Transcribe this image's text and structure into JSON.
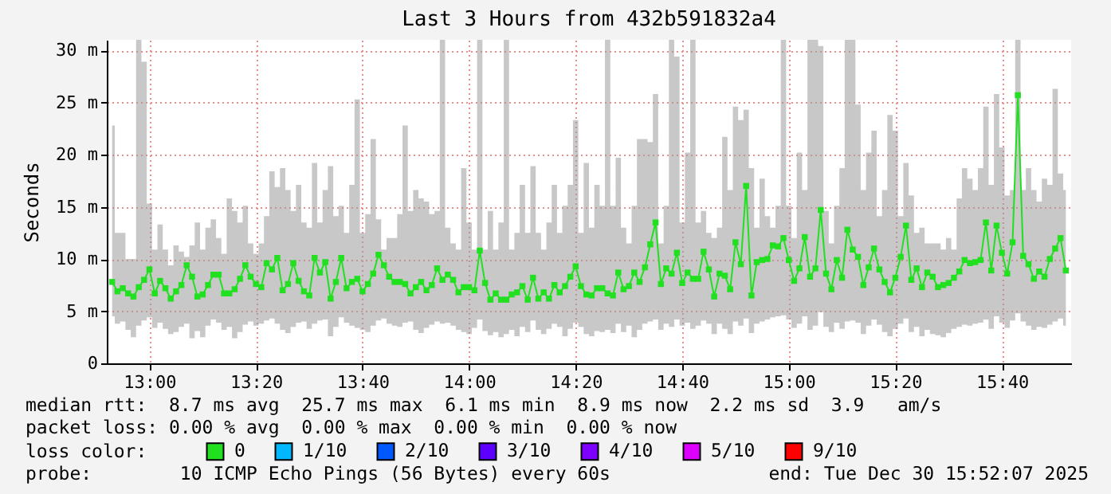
{
  "chart_data": {
    "type": "line",
    "title": "Last 3 Hours from 432b591832a4",
    "ylabel": "Seconds",
    "legend_title": "loss color:",
    "legend": "bottom",
    "grid": true,
    "marker": "square",
    "xlim": [
      "2025-12-30T12:52",
      "2025-12-30T15:53"
    ],
    "xticks": [
      {
        "value": "2025-12-30T13:00",
        "label": "13:00"
      },
      {
        "value": "2025-12-30T13:20",
        "label": "13:20"
      },
      {
        "value": "2025-12-30T13:40",
        "label": "13:40"
      },
      {
        "value": "2025-12-30T14:00",
        "label": "14:00"
      },
      {
        "value": "2025-12-30T14:20",
        "label": "14:20"
      },
      {
        "value": "2025-12-30T14:40",
        "label": "14:40"
      },
      {
        "value": "2025-12-30T15:00",
        "label": "15:00"
      },
      {
        "value": "2025-12-30T15:20",
        "label": "15:20"
      },
      {
        "value": "2025-12-30T15:40",
        "label": "15:40"
      }
    ],
    "ylim": [
      0,
      31
    ],
    "yticks": [
      0,
      {
        "value": 5,
        "label": "5 m"
      },
      {
        "value": 10,
        "label": "10 m"
      },
      {
        "value": 15,
        "label": "15 m"
      },
      {
        "value": 20,
        "label": "20 m"
      },
      {
        "value": 25,
        "label": "25 m"
      },
      {
        "value": 30,
        "label": "30 m"
      }
    ],
    "x": [
      "2025-12-30T12:53",
      "2025-12-30T12:54",
      "2025-12-30T12:55",
      "2025-12-30T12:56",
      "2025-12-30T12:57",
      "2025-12-30T12:58",
      "2025-12-30T12:59",
      "2025-12-30T13:00",
      "2025-12-30T13:01",
      "2025-12-30T13:02",
      "2025-12-30T13:03",
      "2025-12-30T13:04",
      "2025-12-30T13:05",
      "2025-12-30T13:06",
      "2025-12-30T13:07",
      "2025-12-30T13:08",
      "2025-12-30T13:09",
      "2025-12-30T13:10",
      "2025-12-30T13:11",
      "2025-12-30T13:12",
      "2025-12-30T13:13",
      "2025-12-30T13:14",
      "2025-12-30T13:15",
      "2025-12-30T13:16",
      "2025-12-30T13:17",
      "2025-12-30T13:18",
      "2025-12-30T13:19",
      "2025-12-30T13:20",
      "2025-12-30T13:21",
      "2025-12-30T13:22",
      "2025-12-30T13:23",
      "2025-12-30T13:24",
      "2025-12-30T13:25",
      "2025-12-30T13:26",
      "2025-12-30T13:27",
      "2025-12-30T13:28",
      "2025-12-30T13:29",
      "2025-12-30T13:30",
      "2025-12-30T13:31",
      "2025-12-30T13:32",
      "2025-12-30T13:33",
      "2025-12-30T13:34",
      "2025-12-30T13:35",
      "2025-12-30T13:36",
      "2025-12-30T13:37",
      "2025-12-30T13:38",
      "2025-12-30T13:39",
      "2025-12-30T13:40",
      "2025-12-30T13:41",
      "2025-12-30T13:42",
      "2025-12-30T13:43",
      "2025-12-30T13:44",
      "2025-12-30T13:45",
      "2025-12-30T13:46",
      "2025-12-30T13:47",
      "2025-12-30T13:48",
      "2025-12-30T13:49",
      "2025-12-30T13:50",
      "2025-12-30T13:51",
      "2025-12-30T13:52",
      "2025-12-30T13:53",
      "2025-12-30T13:54",
      "2025-12-30T13:55",
      "2025-12-30T13:56",
      "2025-12-30T13:57",
      "2025-12-30T13:58",
      "2025-12-30T13:59",
      "2025-12-30T14:00",
      "2025-12-30T14:01",
      "2025-12-30T14:02",
      "2025-12-30T14:03",
      "2025-12-30T14:04",
      "2025-12-30T14:05",
      "2025-12-30T14:06",
      "2025-12-30T14:07",
      "2025-12-30T14:08",
      "2025-12-30T14:09",
      "2025-12-30T14:10",
      "2025-12-30T14:11",
      "2025-12-30T14:12",
      "2025-12-30T14:13",
      "2025-12-30T14:14",
      "2025-12-30T14:15",
      "2025-12-30T14:16",
      "2025-12-30T14:17",
      "2025-12-30T14:18",
      "2025-12-30T14:19",
      "2025-12-30T14:20",
      "2025-12-30T14:21",
      "2025-12-30T14:22",
      "2025-12-30T14:23",
      "2025-12-30T14:24",
      "2025-12-30T14:25",
      "2025-12-30T14:26",
      "2025-12-30T14:27",
      "2025-12-30T14:28",
      "2025-12-30T14:29",
      "2025-12-30T14:30",
      "2025-12-30T14:31",
      "2025-12-30T14:32",
      "2025-12-30T14:33",
      "2025-12-30T14:34",
      "2025-12-30T14:35",
      "2025-12-30T14:36",
      "2025-12-30T14:37",
      "2025-12-30T14:38",
      "2025-12-30T14:39",
      "2025-12-30T14:40",
      "2025-12-30T14:41",
      "2025-12-30T14:42",
      "2025-12-30T14:43",
      "2025-12-30T14:44",
      "2025-12-30T14:45",
      "2025-12-30T14:46",
      "2025-12-30T14:47",
      "2025-12-30T14:48",
      "2025-12-30T14:49",
      "2025-12-30T14:50",
      "2025-12-30T14:51",
      "2025-12-30T14:52",
      "2025-12-30T14:53",
      "2025-12-30T14:54",
      "2025-12-30T14:55",
      "2025-12-30T14:56",
      "2025-12-30T14:57",
      "2025-12-30T14:58",
      "2025-12-30T14:59",
      "2025-12-30T15:00",
      "2025-12-30T15:01",
      "2025-12-30T15:02",
      "2025-12-30T15:03",
      "2025-12-30T15:04",
      "2025-12-30T15:05",
      "2025-12-30T15:06",
      "2025-12-30T15:07",
      "2025-12-30T15:08",
      "2025-12-30T15:09",
      "2025-12-30T15:10",
      "2025-12-30T15:11",
      "2025-12-30T15:12",
      "2025-12-30T15:13",
      "2025-12-30T15:14",
      "2025-12-30T15:15",
      "2025-12-30T15:16",
      "2025-12-30T15:17",
      "2025-12-30T15:18",
      "2025-12-30T15:19",
      "2025-12-30T15:20",
      "2025-12-30T15:21",
      "2025-12-30T15:22",
      "2025-12-30T15:23",
      "2025-12-30T15:24",
      "2025-12-30T15:25",
      "2025-12-30T15:26",
      "2025-12-30T15:27",
      "2025-12-30T15:28",
      "2025-12-30T15:29",
      "2025-12-30T15:30",
      "2025-12-30T15:31",
      "2025-12-30T15:32",
      "2025-12-30T15:33",
      "2025-12-30T15:34",
      "2025-12-30T15:35",
      "2025-12-30T15:36",
      "2025-12-30T15:37",
      "2025-12-30T15:38",
      "2025-12-30T15:39",
      "2025-12-30T15:40",
      "2025-12-30T15:41",
      "2025-12-30T15:42",
      "2025-12-30T15:43",
      "2025-12-30T15:44",
      "2025-12-30T15:45",
      "2025-12-30T15:46",
      "2025-12-30T15:47",
      "2025-12-30T15:48",
      "2025-12-30T15:49",
      "2025-12-30T15:50",
      "2025-12-30T15:51",
      "2025-12-30T15:52"
    ],
    "series": [
      {
        "name": "0",
        "color": "#20e020",
        "values": [
          7.8,
          6.9,
          7.2,
          6.7,
          6.4,
          7.3,
          8.0,
          9.0,
          6.7,
          7.9,
          7.2,
          6.2,
          6.9,
          7.5,
          9.4,
          8.3,
          6.4,
          6.6,
          7.5,
          8.5,
          8.5,
          6.7,
          6.7,
          7.1,
          8.1,
          9.4,
          8.3,
          7.6,
          7.3,
          9.6,
          9.0,
          10.1,
          7.0,
          7.6,
          9.6,
          7.9,
          6.9,
          6.5,
          10.1,
          8.7,
          9.7,
          6.2,
          7.8,
          10.1,
          7.2,
          7.8,
          8.1,
          6.9,
          7.6,
          8.6,
          10.4,
          9.4,
          8.3,
          7.8,
          7.8,
          7.6,
          6.7,
          7.3,
          7.8,
          7.0,
          7.5,
          9.1,
          8.0,
          8.5,
          8.0,
          6.8,
          7.3,
          7.3,
          7.0,
          10.8,
          7.7,
          6.1,
          6.7,
          6.1,
          6.1,
          6.6,
          6.8,
          7.4,
          6.1,
          8.2,
          6.2,
          6.8,
          6.2,
          7.5,
          6.8,
          7.4,
          8.3,
          9.3,
          7.4,
          6.6,
          6.5,
          7.2,
          7.2,
          6.7,
          6.5,
          8.7,
          7.1,
          7.4,
          8.7,
          7.8,
          9.2,
          11.4,
          13.5,
          7.6,
          9.1,
          8.6,
          10.6,
          7.7,
          8.7,
          8.1,
          8.1,
          10.7,
          9.0,
          6.4,
          8.6,
          8.4,
          7.1,
          11.6,
          9.5,
          17.0,
          6.5,
          9.7,
          9.9,
          10.0,
          11.3,
          11.2,
          12.0,
          9.9,
          7.9,
          9.1,
          12.1,
          8.3,
          9.1,
          14.7,
          8.6,
          7.1,
          9.9,
          8.2,
          12.8,
          10.9,
          10.2,
          7.5,
          9.2,
          11.0,
          9.0,
          7.8,
          6.8,
          8.2,
          10.2,
          13.2,
          8.0,
          9.1,
          7.3,
          8.7,
          8.3,
          7.3,
          7.5,
          7.7,
          8.2,
          8.8,
          9.9,
          9.6,
          9.7,
          9.9,
          13.5,
          8.9,
          13.2,
          10.6,
          8.6,
          11.6,
          25.7,
          10.3,
          9.5,
          8.1,
          8.8,
          8.3,
          10.0,
          11.0,
          12.0,
          8.9
        ],
        "lower": [
          4.5,
          3.8,
          4.0,
          3.2,
          2.5,
          3.6,
          4.1,
          4.4,
          3.4,
          3.9,
          3.3,
          2.8,
          3.0,
          3.5,
          3.8,
          2.4,
          3.1,
          2.5,
          3.6,
          4.2,
          3.9,
          3.2,
          3.5,
          2.4,
          3.0,
          3.7,
          4.0,
          3.6,
          3.8,
          4.1,
          4.3,
          3.8,
          3.2,
          2.9,
          3.5,
          3.9,
          4.0,
          3.3,
          3.8,
          4.1,
          4.2,
          2.6,
          3.5,
          4.4,
          3.9,
          3.6,
          3.4,
          3.2,
          3.0,
          3.6,
          4.1,
          4.3,
          3.8,
          3.6,
          3.5,
          3.9,
          4.0,
          3.2,
          2.9,
          3.4,
          3.7,
          4.0,
          3.8,
          3.9,
          3.6,
          3.2,
          3.0,
          2.8,
          3.4,
          4.2,
          3.1,
          2.7,
          3.0,
          2.5,
          2.8,
          3.2,
          2.6,
          3.5,
          3.0,
          4.1,
          3.2,
          2.8,
          3.3,
          3.8,
          3.5,
          2.6,
          3.3,
          3.9,
          3.5,
          2.8,
          2.6,
          3.1,
          3.0,
          3.2,
          2.9,
          3.8,
          3.0,
          3.6,
          2.5,
          3.2,
          3.8,
          4.0,
          4.2,
          3.2,
          3.8,
          3.5,
          4.2,
          3.6,
          3.9,
          3.3,
          3.6,
          4.1,
          3.8,
          2.8,
          3.8,
          3.3,
          2.8,
          4.0,
          3.6,
          4.3,
          2.9,
          3.8,
          4.0,
          4.2,
          4.4,
          4.5,
          4.6,
          4.2,
          3.4,
          3.8,
          4.5,
          3.2,
          3.6,
          4.9,
          3.5,
          3.0,
          3.9,
          3.3,
          4.0,
          4.1,
          3.9,
          2.8,
          3.6,
          4.2,
          3.7,
          3.0,
          2.6,
          3.3,
          3.8,
          4.3,
          3.0,
          3.5,
          2.6,
          3.2,
          2.8,
          2.7,
          2.5,
          2.9,
          3.3,
          3.5,
          3.7,
          3.6,
          3.8,
          3.9,
          4.2,
          3.3,
          4.5,
          3.9,
          3.4,
          4.1,
          4.8,
          4.0,
          3.6,
          3.2,
          3.5,
          3.4,
          3.7,
          4.0,
          4.3,
          3.6
        ],
        "upper": [
          22.8,
          12.5,
          12.5,
          10,
          10,
          31,
          28.9,
          15.3,
          10.9,
          13.3,
          10.9,
          9.4,
          11.3,
          10.7,
          10.2,
          11.3,
          13.5,
          10.9,
          13.0,
          13.8,
          12.0,
          10.5,
          15.8,
          14.6,
          13.5,
          15.1,
          11.5,
          10.5,
          11.5,
          14.1,
          18.4,
          16.9,
          18.7,
          16.6,
          14.6,
          17.1,
          13.5,
          13.0,
          19.2,
          13.5,
          16.6,
          18.9,
          14.1,
          15.1,
          12.5,
          17.1,
          25.3,
          12.5,
          14.3,
          21.5,
          13.8,
          10.9,
          12.0,
          12.0,
          14.3,
          22.8,
          14.6,
          16.6,
          15.8,
          15.5,
          14.3,
          14.6,
          31,
          13.0,
          11.5,
          10.9,
          18.7,
          13.5,
          10.9,
          31,
          10.9,
          14.6,
          10.9,
          13.5,
          31,
          10.9,
          12.5,
          17.1,
          12.5,
          18.9,
          12.5,
          10.9,
          13.5,
          17.1,
          12.5,
          15.1,
          17.1,
          23.3,
          12.5,
          19.2,
          13.0,
          17.1,
          15.1,
          31,
          15.1,
          19.7,
          13.0,
          11.5,
          15.1,
          21.5,
          21.5,
          21.2,
          25.8,
          11.5,
          15.1,
          31,
          29.4,
          13.5,
          20.2,
          31,
          13.5,
          14.6,
          12.5,
          12.0,
          13.0,
          21.7,
          16.6,
          24.6,
          23.3,
          24.3,
          18.7,
          13.0,
          17.7,
          14.1,
          13.0,
          15.1,
          31,
          15.1,
          12.0,
          20.2,
          16.6,
          31,
          31,
          30.4,
          14.6,
          11.5,
          15.1,
          18.7,
          31,
          31,
          24.8,
          16.6,
          20.2,
          22.3,
          14.1,
          16.6,
          23.8,
          22.3,
          14.1,
          19.2,
          16.1,
          12.5,
          13.0,
          11.5,
          11.5,
          11.5,
          10.9,
          12.0,
          10.9,
          15.8,
          18.7,
          17.7,
          16.6,
          18.7,
          24.6,
          17.1,
          25.8,
          20.7,
          16.1,
          16.6,
          31,
          16.6,
          18.7,
          16.6,
          15.5,
          17.7,
          17.1,
          26.3,
          18.2,
          16.6
        ]
      },
      {
        "name": "1/10",
        "color": "#00b8ff",
        "values": [
          null,
          null,
          null,
          null,
          null,
          null,
          null,
          null,
          null,
          null,
          null,
          null,
          null,
          null,
          null,
          null,
          null,
          null,
          null,
          null,
          null,
          null,
          null,
          null,
          null,
          null,
          null,
          null,
          null,
          null,
          null,
          null,
          null,
          null,
          null,
          null,
          null,
          null,
          null,
          null,
          null,
          null,
          null,
          null,
          null,
          null,
          null,
          null,
          null,
          null,
          null,
          null,
          null,
          null,
          null,
          null,
          null,
          null,
          null,
          null,
          null,
          null,
          null,
          null,
          null,
          null,
          null,
          null,
          null,
          null,
          null,
          null,
          null,
          null,
          null,
          null,
          null,
          null,
          null,
          null,
          null,
          null,
          null,
          null,
          null,
          null,
          null,
          null,
          null,
          null,
          null,
          null,
          null,
          null,
          null,
          null,
          null,
          null,
          null,
          null,
          null,
          null,
          null,
          null,
          null,
          null,
          null,
          null,
          null,
          null,
          null,
          null,
          null,
          null,
          null,
          null,
          null,
          null,
          null,
          null,
          null,
          null,
          null,
          null,
          null,
          null,
          null,
          null,
          null,
          null,
          null,
          null,
          null,
          null,
          null,
          null,
          null,
          null,
          null,
          null,
          null,
          null,
          null,
          null,
          null,
          null,
          null,
          null,
          null,
          null,
          null,
          null,
          null,
          null,
          null,
          null,
          null,
          null,
          null,
          null,
          null,
          null,
          null,
          null,
          null,
          null,
          null,
          null,
          null,
          null,
          null,
          null,
          null,
          null,
          null,
          null,
          null,
          null,
          null,
          null
        ]
      },
      {
        "name": "2/10",
        "color": "#0059ff",
        "values": [
          null,
          null,
          null,
          null,
          null,
          null,
          null,
          null,
          null,
          null,
          null,
          null,
          null,
          null,
          null,
          null,
          null,
          null,
          null,
          null,
          null,
          null,
          null,
          null,
          null,
          null,
          null,
          null,
          null,
          null,
          null,
          null,
          null,
          null,
          null,
          null,
          null,
          null,
          null,
          null,
          null,
          null,
          null,
          null,
          null,
          null,
          null,
          null,
          null,
          null,
          null,
          null,
          null,
          null,
          null,
          null,
          null,
          null,
          null,
          null,
          null,
          null,
          null,
          null,
          null,
          null,
          null,
          null,
          null,
          null,
          null,
          null,
          null,
          null,
          null,
          null,
          null,
          null,
          null,
          null,
          null,
          null,
          null,
          null,
          null,
          null,
          null,
          null,
          null,
          null,
          null,
          null,
          null,
          null,
          null,
          null,
          null,
          null,
          null,
          null,
          null,
          null,
          null,
          null,
          null,
          null,
          null,
          null,
          null,
          null,
          null,
          null,
          null,
          null,
          null,
          null,
          null,
          null,
          null,
          null,
          null,
          null,
          null,
          null,
          null,
          null,
          null,
          null,
          null,
          null,
          null,
          null,
          null,
          null,
          null,
          null,
          null,
          null,
          null,
          null,
          null,
          null,
          null,
          null,
          null,
          null,
          null,
          null,
          null,
          null,
          null,
          null,
          null,
          null,
          null,
          null,
          null,
          null,
          null,
          null,
          null,
          null,
          null,
          null,
          null,
          null,
          null,
          null,
          null,
          null,
          null,
          null,
          null,
          null,
          null,
          null,
          null,
          null,
          null,
          null
        ]
      },
      {
        "name": "3/10",
        "color": "#5e00ff",
        "values": [
          null,
          null,
          null,
          null,
          null,
          null,
          null,
          null,
          null,
          null,
          null,
          null,
          null,
          null,
          null,
          null,
          null,
          null,
          null,
          null,
          null,
          null,
          null,
          null,
          null,
          null,
          null,
          null,
          null,
          null,
          null,
          null,
          null,
          null,
          null,
          null,
          null,
          null,
          null,
          null,
          null,
          null,
          null,
          null,
          null,
          null,
          null,
          null,
          null,
          null,
          null,
          null,
          null,
          null,
          null,
          null,
          null,
          null,
          null,
          null,
          null,
          null,
          null,
          null,
          null,
          null,
          null,
          null,
          null,
          null,
          null,
          null,
          null,
          null,
          null,
          null,
          null,
          null,
          null,
          null,
          null,
          null,
          null,
          null,
          null,
          null,
          null,
          null,
          null,
          null,
          null,
          null,
          null,
          null,
          null,
          null,
          null,
          null,
          null,
          null,
          null,
          null,
          null,
          null,
          null,
          null,
          null,
          null,
          null,
          null,
          null,
          null,
          null,
          null,
          null,
          null,
          null,
          null,
          null,
          null,
          null,
          null,
          null,
          null,
          null,
          null,
          null,
          null,
          null,
          null,
          null,
          null,
          null,
          null,
          null,
          null,
          null,
          null,
          null,
          null,
          null,
          null,
          null,
          null,
          null,
          null,
          null,
          null,
          null,
          null,
          null,
          null,
          null,
          null,
          null,
          null,
          null,
          null,
          null,
          null,
          null,
          null,
          null,
          null,
          null,
          null,
          null,
          null,
          null,
          null,
          null,
          null,
          null,
          null,
          null,
          null,
          null,
          null,
          null,
          null
        ]
      },
      {
        "name": "4/10",
        "color": "#7e00ff",
        "values": [
          null,
          null,
          null,
          null,
          null,
          null,
          null,
          null,
          null,
          null,
          null,
          null,
          null,
          null,
          null,
          null,
          null,
          null,
          null,
          null,
          null,
          null,
          null,
          null,
          null,
          null,
          null,
          null,
          null,
          null,
          null,
          null,
          null,
          null,
          null,
          null,
          null,
          null,
          null,
          null,
          null,
          null,
          null,
          null,
          null,
          null,
          null,
          null,
          null,
          null,
          null,
          null,
          null,
          null,
          null,
          null,
          null,
          null,
          null,
          null,
          null,
          null,
          null,
          null,
          null,
          null,
          null,
          null,
          null,
          null,
          null,
          null,
          null,
          null,
          null,
          null,
          null,
          null,
          null,
          null,
          null,
          null,
          null,
          null,
          null,
          null,
          null,
          null,
          null,
          null,
          null,
          null,
          null,
          null,
          null,
          null,
          null,
          null,
          null,
          null,
          null,
          null,
          null,
          null,
          null,
          null,
          null,
          null,
          null,
          null,
          null,
          null,
          null,
          null,
          null,
          null,
          null,
          null,
          null,
          null,
          null,
          null,
          null,
          null,
          null,
          null,
          null,
          null,
          null,
          null,
          null,
          null,
          null,
          null,
          null,
          null,
          null,
          null,
          null,
          null,
          null,
          null,
          null,
          null,
          null,
          null,
          null,
          null,
          null,
          null,
          null,
          null,
          null,
          null,
          null,
          null,
          null,
          null,
          null,
          null,
          null,
          null,
          null,
          null,
          null,
          null,
          null,
          null,
          null,
          null,
          null,
          null,
          null,
          null,
          null,
          null,
          null,
          null,
          null,
          null
        ]
      },
      {
        "name": "5/10",
        "color": "#dd00ff",
        "values": [
          null,
          null,
          null,
          null,
          null,
          null,
          null,
          null,
          null,
          null,
          null,
          null,
          null,
          null,
          null,
          null,
          null,
          null,
          null,
          null,
          null,
          null,
          null,
          null,
          null,
          null,
          null,
          null,
          null,
          null,
          null,
          null,
          null,
          null,
          null,
          null,
          null,
          null,
          null,
          null,
          null,
          null,
          null,
          null,
          null,
          null,
          null,
          null,
          null,
          null,
          null,
          null,
          null,
          null,
          null,
          null,
          null,
          null,
          null,
          null,
          null,
          null,
          null,
          null,
          null,
          null,
          null,
          null,
          null,
          null,
          null,
          null,
          null,
          null,
          null,
          null,
          null,
          null,
          null,
          null,
          null,
          null,
          null,
          null,
          null,
          null,
          null,
          null,
          null,
          null,
          null,
          null,
          null,
          null,
          null,
          null,
          null,
          null,
          null,
          null,
          null,
          null,
          null,
          null,
          null,
          null,
          null,
          null,
          null,
          null,
          null,
          null,
          null,
          null,
          null,
          null,
          null,
          null,
          null,
          null,
          null,
          null,
          null,
          null,
          null,
          null,
          null,
          null,
          null,
          null,
          null,
          null,
          null,
          null,
          null,
          null,
          null,
          null,
          null,
          null,
          null,
          null,
          null,
          null,
          null,
          null,
          null,
          null,
          null,
          null,
          null,
          null,
          null,
          null,
          null,
          null,
          null,
          null,
          null,
          null,
          null,
          null,
          null,
          null,
          null,
          null,
          null,
          null,
          null,
          null,
          null,
          null,
          null,
          null,
          null,
          null,
          null,
          null,
          null,
          null
        ]
      },
      {
        "name": "9/10",
        "color": "#ff0000",
        "values": [
          null,
          null,
          null,
          null,
          null,
          null,
          null,
          null,
          null,
          null,
          null,
          null,
          null,
          null,
          null,
          null,
          null,
          null,
          null,
          null,
          null,
          null,
          null,
          null,
          null,
          null,
          null,
          null,
          null,
          null,
          null,
          null,
          null,
          null,
          null,
          null,
          null,
          null,
          null,
          null,
          null,
          null,
          null,
          null,
          null,
          null,
          null,
          null,
          null,
          null,
          null,
          null,
          null,
          null,
          null,
          null,
          null,
          null,
          null,
          null,
          null,
          null,
          null,
          null,
          null,
          null,
          null,
          null,
          null,
          null,
          null,
          null,
          null,
          null,
          null,
          null,
          null,
          null,
          null,
          null,
          null,
          null,
          null,
          null,
          null,
          null,
          null,
          null,
          null,
          null,
          null,
          null,
          null,
          null,
          null,
          null,
          null,
          null,
          null,
          null,
          null,
          null,
          null,
          null,
          null,
          null,
          null,
          null,
          null,
          null,
          null,
          null,
          null,
          null,
          null,
          null,
          null,
          null,
          null,
          null,
          null,
          null,
          null,
          null,
          null,
          null,
          null,
          null,
          null,
          null,
          null,
          null,
          null,
          null,
          null,
          null,
          null,
          null,
          null,
          null,
          null,
          null,
          null,
          null,
          null,
          null,
          null,
          null,
          null,
          null,
          null,
          null,
          null,
          null,
          null,
          null,
          null,
          null,
          null,
          null,
          null,
          null,
          null,
          null,
          null,
          null,
          null,
          null,
          null,
          null,
          null,
          null,
          null,
          null,
          null,
          null,
          null,
          null,
          null,
          null
        ]
      }
    ],
    "annotations": [
      "median rtt:  8.7 ms avg  25.7 ms max  6.1 ms min  8.9 ms now  2.2 ms sd  3.9   am/s",
      "packet loss: 0.00 % avg  0.00 % max  0.00 % min  0.00 % now",
      "probe:        10 ICMP Echo Pings (56 Bytes) every 60s",
      "end: Tue Dec 30 15:52:07 2025"
    ]
  }
}
